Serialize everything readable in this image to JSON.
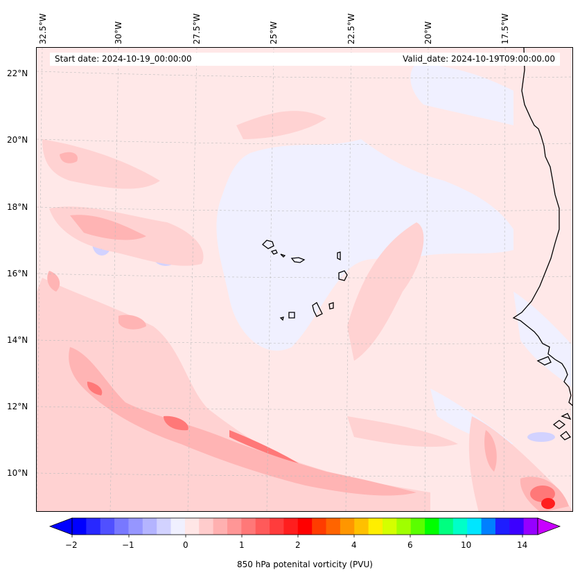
{
  "map": {
    "start_date": "Start date: 2024-10-19_00:00:00",
    "valid_date": "Valid_date: 2024-10-19T09:00:00.00",
    "lon_labels": [
      "32.5°W",
      "30°W",
      "27.5°W",
      "25°W",
      "22.5°W",
      "20°W",
      "17.5°W"
    ],
    "lat_labels": [
      "22°N",
      "20°N",
      "18°N",
      "16°N",
      "14°N",
      "12°N",
      "10°N"
    ],
    "variable": "850 hPa potenital vorticity (PVU)"
  },
  "colorbar": {
    "label": "850 hPa potenital vorticity (PVU)",
    "tick_labels": [
      "−2",
      "−1",
      "0",
      "1",
      "2",
      "4",
      "6",
      "10",
      "14"
    ],
    "colors": [
      "#0000ff",
      "#2828ff",
      "#5050ff",
      "#7878ff",
      "#9696ff",
      "#b4b4ff",
      "#d2d2ff",
      "#f0f0ff",
      "#ffe6e6",
      "#ffcccc",
      "#ffb0b0",
      "#ff9696",
      "#ff7878",
      "#ff5a5a",
      "#ff3c3c",
      "#ff1e1e",
      "#ff0000",
      "#ff3c00",
      "#ff6400",
      "#ff9600",
      "#ffc000",
      "#ffee00",
      "#d4ff00",
      "#a0ff00",
      "#5aff00",
      "#00ff00",
      "#00ff80",
      "#00ffc8",
      "#00e6ff",
      "#0080ff",
      "#1e1eff",
      "#3c00ff",
      "#9600ff"
    ],
    "under_color": "#0000ff",
    "over_color": "#c800ff"
  },
  "palette": {
    "background": "#ffe8e8",
    "neg_light": "#f0f0ff",
    "neg_mid": "#d2d2ff",
    "neg_strong": "#9696ff",
    "pos_light": "#ffd2d2",
    "pos_mid": "#ffb4b4",
    "pos_strong": "#ff7878",
    "pos_max": "#ff1e1e",
    "coast": "#000000",
    "grid": "#bbbbbb"
  }
}
